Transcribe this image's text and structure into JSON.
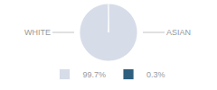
{
  "chart_data": {
    "type": "pie",
    "categories": [
      "WHITE",
      "ASIAN"
    ],
    "values": [
      99.7,
      0.3
    ],
    "value_labels": [
      "99.7%",
      "0.3%"
    ],
    "colors": [
      "#d6dce8",
      "#2e5f7e"
    ],
    "legend": "bottom"
  }
}
